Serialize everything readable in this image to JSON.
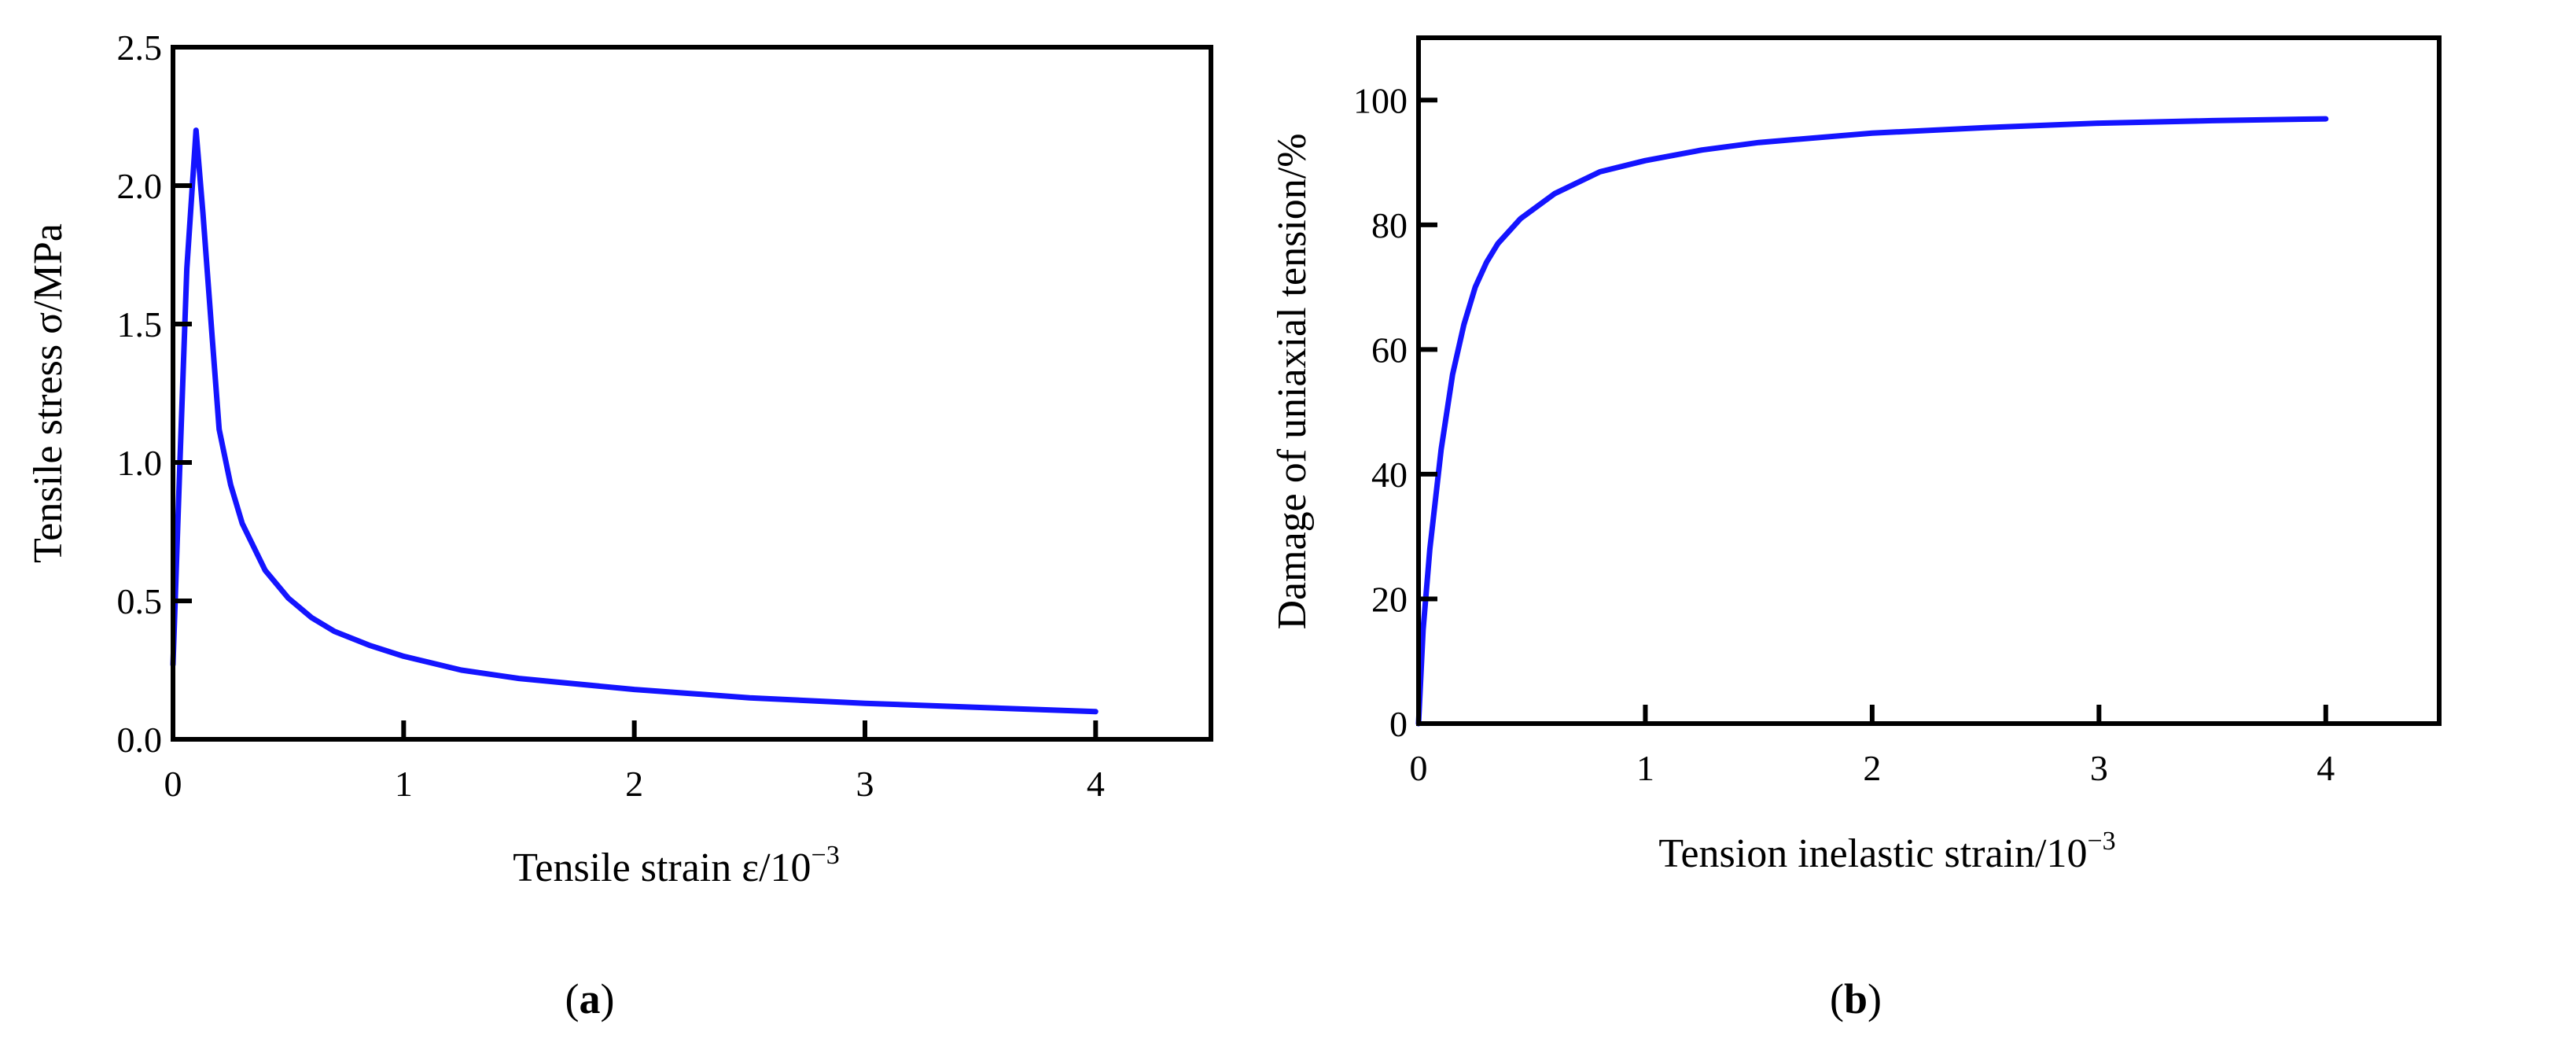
{
  "chart_data": [
    {
      "type": "line",
      "panel_label": "a",
      "xlabel": "Tensile strain ε/10",
      "xlabel_sup": "−3",
      "ylabel": "Tensile stress σ/MPa",
      "xlim": [
        0,
        4.5
      ],
      "ylim": [
        0,
        2.5
      ],
      "xticks": [
        0,
        1,
        2,
        3,
        4
      ],
      "xtick_labels": [
        "0",
        "1",
        "2",
        "3",
        "4"
      ],
      "yticks": [
        0,
        0.5,
        1,
        1.5,
        2,
        2.5
      ],
      "ytick_labels": [
        "0.0",
        "0.5",
        "1.0",
        "1.5",
        "2.0",
        "2.5"
      ],
      "grid": false,
      "line_color": "#1414ff",
      "series": [
        {
          "x": [
            0.0,
            0.03,
            0.06,
            0.1,
            0.13,
            0.17,
            0.2,
            0.25,
            0.3,
            0.4,
            0.5,
            0.6,
            0.7,
            0.85,
            1.0,
            1.25,
            1.5,
            2.0,
            2.5,
            3.0,
            3.5,
            4.0
          ],
          "y": [
            0.27,
            1.0,
            1.7,
            2.2,
            1.9,
            1.45,
            1.12,
            0.92,
            0.78,
            0.61,
            0.51,
            0.44,
            0.39,
            0.34,
            0.3,
            0.25,
            0.22,
            0.18,
            0.15,
            0.13,
            0.115,
            0.1
          ]
        }
      ]
    },
    {
      "type": "line",
      "panel_label": "b",
      "xlabel": "Tension inelastic strain/10",
      "xlabel_sup": "−3",
      "ylabel": "Damage of uniaxial tension/%",
      "xlim": [
        0,
        4.5
      ],
      "ylim": [
        0,
        110
      ],
      "xticks": [
        0,
        1,
        2,
        3,
        4
      ],
      "xtick_labels": [
        "0",
        "1",
        "2",
        "3",
        "4"
      ],
      "yticks": [
        0,
        20,
        40,
        60,
        80,
        100
      ],
      "ytick_labels": [
        "0",
        "20",
        "40",
        "60",
        "80",
        "100"
      ],
      "grid": false,
      "line_color": "#1414ff",
      "series": [
        {
          "x": [
            0.0,
            0.02,
            0.05,
            0.1,
            0.15,
            0.2,
            0.25,
            0.3,
            0.35,
            0.45,
            0.6,
            0.8,
            1.0,
            1.25,
            1.5,
            2.0,
            2.5,
            3.0,
            3.5,
            4.0
          ],
          "y": [
            0,
            15,
            28,
            44,
            56,
            64,
            70,
            74,
            77,
            81,
            85,
            88.5,
            90.3,
            92,
            93.2,
            94.7,
            95.6,
            96.3,
            96.7,
            97
          ]
        }
      ]
    }
  ]
}
